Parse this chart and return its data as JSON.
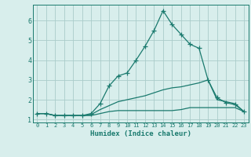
{
  "title": "",
  "xlabel": "Humidex (Indice chaleur)",
  "x": [
    0,
    1,
    2,
    3,
    4,
    5,
    6,
    7,
    8,
    9,
    10,
    11,
    12,
    13,
    14,
    15,
    16,
    17,
    18,
    19,
    20,
    21,
    22,
    23
  ],
  "line_max": [
    1.3,
    1.3,
    1.2,
    1.2,
    1.2,
    1.2,
    1.3,
    1.8,
    2.7,
    3.2,
    3.35,
    4.0,
    4.7,
    5.5,
    6.5,
    5.8,
    5.3,
    4.8,
    4.6,
    3.0,
    2.1,
    1.85,
    1.75,
    1.4
  ],
  "line_mean": [
    1.3,
    1.3,
    1.2,
    1.2,
    1.2,
    1.2,
    1.25,
    1.5,
    1.7,
    1.9,
    2.0,
    2.1,
    2.2,
    2.35,
    2.5,
    2.6,
    2.65,
    2.75,
    2.85,
    3.0,
    2.0,
    1.9,
    1.8,
    1.4
  ],
  "line_min": [
    1.3,
    1.3,
    1.2,
    1.2,
    1.2,
    1.2,
    1.2,
    1.3,
    1.4,
    1.45,
    1.45,
    1.45,
    1.45,
    1.45,
    1.45,
    1.45,
    1.5,
    1.6,
    1.6,
    1.6,
    1.6,
    1.6,
    1.6,
    1.4
  ],
  "line_color": "#1a7a6e",
  "bg_color": "#d8eeec",
  "grid_color": "#aaccca",
  "ylim": [
    0.85,
    6.8
  ],
  "yticks": [
    1,
    2,
    3,
    4,
    5,
    6
  ],
  "xlim": [
    -0.5,
    23.5
  ],
  "marker": "+",
  "markersize": 4,
  "linewidth": 0.9
}
